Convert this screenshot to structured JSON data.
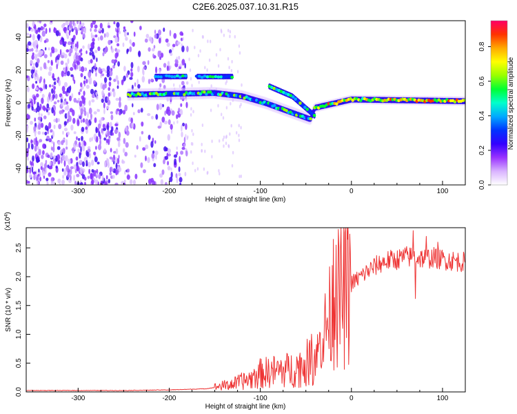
{
  "figure": {
    "title": "C2E6.2025.037.10.31.R15"
  },
  "colors": {
    "snr_line": "#ee3333",
    "axis": "#000000",
    "colorbar": [
      "#ffffff",
      "#d9b3ff",
      "#9933ff",
      "#3300ff",
      "#0033ff",
      "#00aaff",
      "#00ffcc",
      "#00ff33",
      "#99ff00",
      "#ffff00",
      "#ffaa00",
      "#ff3300",
      "#ff0066"
    ]
  },
  "chart_data": [
    {
      "type": "heatmap",
      "name": "spectrogram",
      "xlabel": "Height of straight line (km)",
      "ylabel": "Frequency (Hz)",
      "xlim": [
        -357,
        125
      ],
      "ylim": [
        -50,
        50
      ],
      "xticks": [
        -300,
        -200,
        -100,
        0,
        100
      ],
      "yticks": [
        -40,
        -20,
        0,
        20,
        40
      ],
      "colorbar": {
        "label": "Normalized spectral amplitude",
        "range": [
          0.0,
          0.95
        ],
        "ticks": [
          0.0,
          0.2,
          0.4,
          0.6,
          0.8
        ]
      },
      "features": [
        {
          "name": "noise",
          "x_range": [
            -357,
            -180
          ],
          "freq_range": [
            -50,
            50
          ],
          "amplitude": 0.15
        },
        {
          "name": "main-band",
          "x_range": [
            -245,
            125
          ],
          "center_hz": [
            [
              -245,
              5
            ],
            [
              -150,
              6
            ],
            [
              -120,
              4
            ],
            [
              -95,
              0
            ],
            [
              -75,
              -4
            ],
            [
              -45,
              -10
            ],
            [
              -40,
              -3
            ],
            [
              0,
              2
            ],
            [
              125,
              1
            ]
          ],
          "peak_amplitude": 0.9
        },
        {
          "name": "upper-band",
          "x_range": [
            -215,
            -130
          ],
          "center_hz": 16,
          "amplitude": 0.45
        },
        {
          "name": "descending-band",
          "x_range": [
            -90,
            -40
          ],
          "center_hz": [
            [
              -90,
              10
            ],
            [
              -65,
              4
            ],
            [
              -40,
              -8
            ]
          ],
          "amplitude": 0.5
        }
      ]
    },
    {
      "type": "line",
      "name": "snr",
      "xlabel": "Height of straight line (km)",
      "ylabel": "SNR (10 * v/v)",
      "y_multiplier": "(x10^4)",
      "xlim": [
        -357,
        125
      ],
      "ylim": [
        0,
        2.85
      ],
      "xticks": [
        -300,
        -200,
        -100,
        0,
        100
      ],
      "yticks": [
        0.0,
        0.5,
        1.0,
        1.5,
        2.0,
        2.5
      ],
      "series": [
        {
          "name": "SNR",
          "x": [
            -357,
            -300,
            -250,
            -200,
            -160,
            -130,
            -110,
            -100,
            -90,
            -80,
            -70,
            -60,
            -50,
            -40,
            -35,
            -30,
            -25,
            -20,
            -15,
            -10,
            -5,
            0,
            10,
            20,
            30,
            40,
            50,
            60,
            70,
            80,
            90,
            100,
            110,
            125
          ],
          "y": [
            0.02,
            0.02,
            0.02,
            0.03,
            0.05,
            0.12,
            0.2,
            0.28,
            0.3,
            0.32,
            0.33,
            0.36,
            0.42,
            0.55,
            0.8,
            1.05,
            1.25,
            1.45,
            1.6,
            1.7,
            1.78,
            1.88,
            2.0,
            2.12,
            2.22,
            2.28,
            2.3,
            2.35,
            2.33,
            2.32,
            2.33,
            2.3,
            2.28,
            2.25
          ],
          "peaks": [
            [
              -20,
              2.65
            ],
            [
              -17,
              2.55
            ],
            [
              68,
              2.8
            ],
            [
              70,
              1.62
            ],
            [
              82,
              2.7
            ],
            [
              95,
              2.6
            ]
          ]
        }
      ]
    }
  ]
}
